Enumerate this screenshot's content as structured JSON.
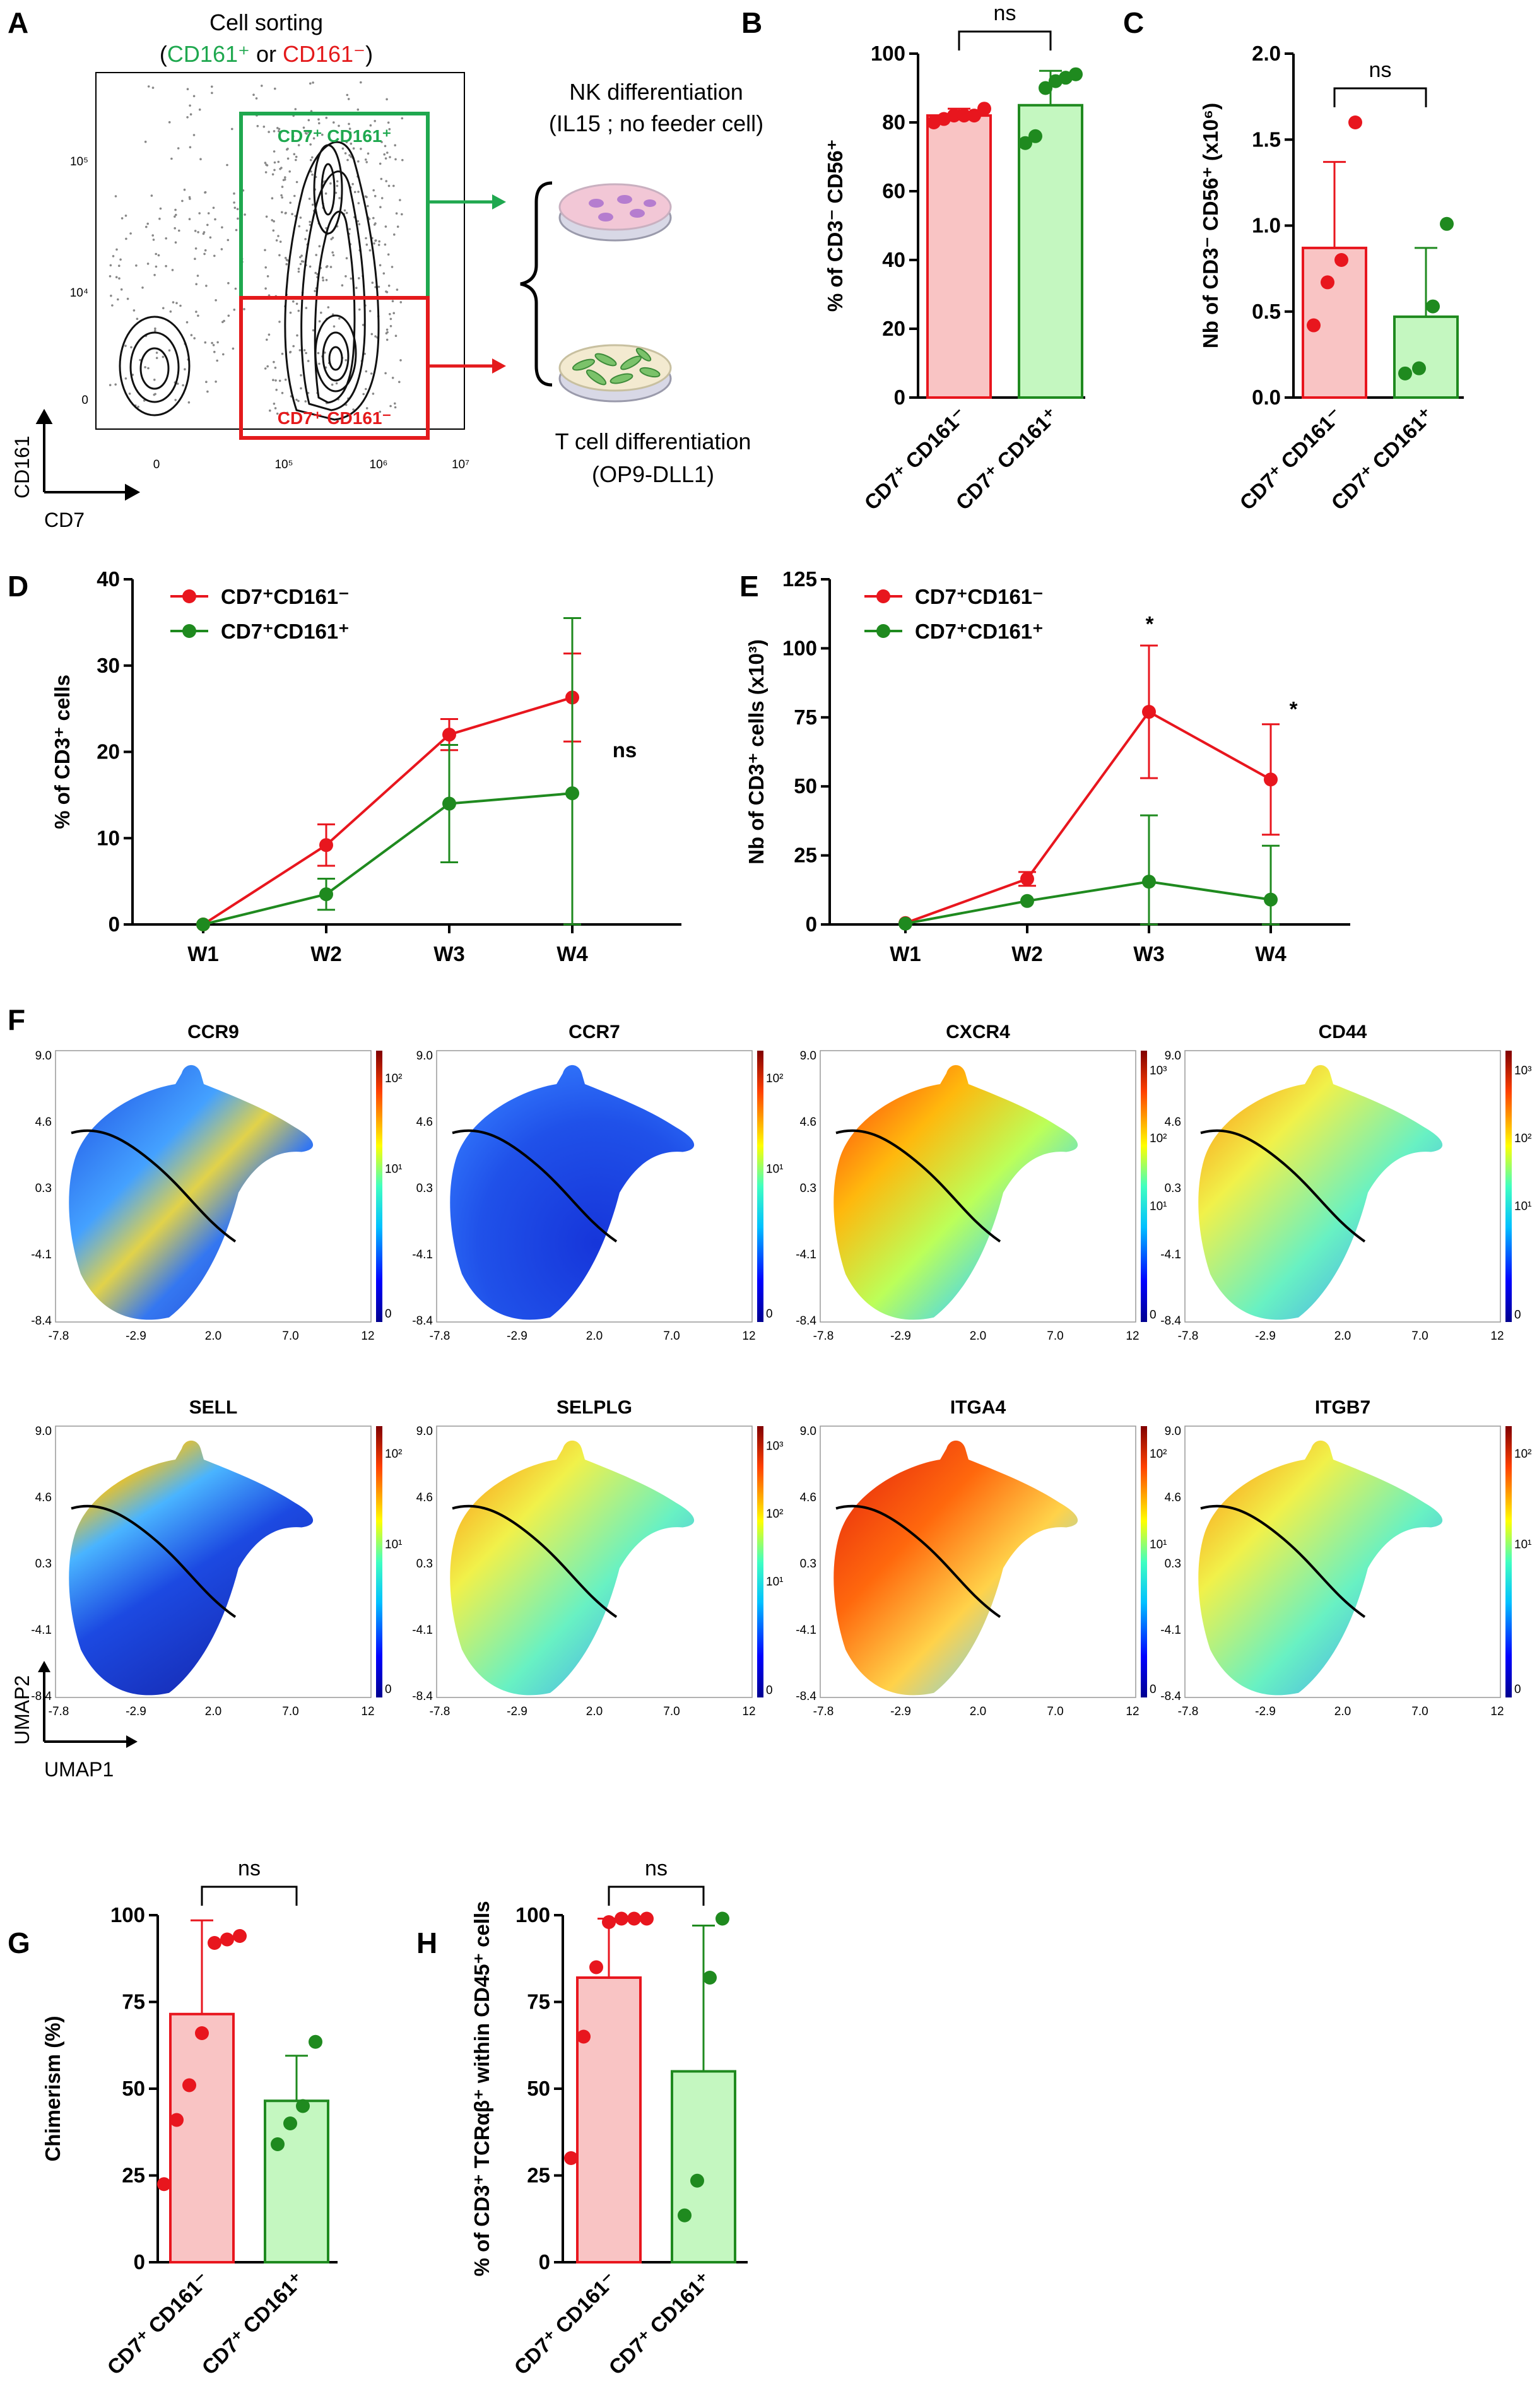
{
  "colors": {
    "red": "#e8161e",
    "green": "#1f8a1f",
    "red_fill": "#f9c4c4",
    "green_fill": "#c4f7c0",
    "gate_green": "#1fa84f",
    "gate_red": "#e41a1c",
    "text_green": "#1fa84f",
    "text_red": "#e41a1c"
  },
  "panel_letters": [
    "A",
    "B",
    "C",
    "D",
    "E",
    "F",
    "G",
    "H"
  ],
  "panel_a": {
    "title": "Cell sorting",
    "subtitle_open": "(",
    "subtitle_green": "CD161⁺",
    "subtitle_or": " or ",
    "subtitle_red": "CD161⁻",
    "subtitle_close": ")",
    "gate_top": "CD7⁺ CD161⁺",
    "gate_bottom": "CD7⁺ CD161⁻",
    "x_axis": "CD7",
    "y_axis": "CD161",
    "x_ticks": [
      "0",
      "10⁵",
      "10⁶",
      "10⁷"
    ],
    "y_ticks": [
      "0",
      "10⁴",
      "10⁵"
    ],
    "nk_line1": "NK differentiation",
    "nk_line2": "(IL15 ; no feeder cell)",
    "t_line1": "T cell differentiation",
    "t_line2": "(OP9-DLL1)"
  },
  "chart_data": [
    {
      "id": "B",
      "type": "bar",
      "categories": [
        "CD7⁺ CD161⁻",
        "CD7⁺ CD161⁺"
      ],
      "values": [
        82,
        85
      ],
      "errors": [
        2,
        10
      ],
      "points": [
        [
          80,
          81,
          82,
          82,
          82,
          84
        ],
        [
          74,
          76,
          90,
          92,
          93,
          94
        ]
      ],
      "ylabel": "% of CD3⁻ CD56⁺",
      "ylim": [
        0,
        100
      ],
      "yticks": [
        "0",
        "20",
        "40",
        "60",
        "80",
        "100"
      ],
      "annotation": "ns"
    },
    {
      "id": "C",
      "type": "bar",
      "categories": [
        "CD7⁺ CD161⁻",
        "CD7⁺ CD161⁺"
      ],
      "values": [
        0.87,
        0.47
      ],
      "errors": [
        0.5,
        0.4
      ],
      "points": [
        [
          0.42,
          0.67,
          0.8,
          1.6
        ],
        [
          0.14,
          0.17,
          0.53,
          1.01
        ]
      ],
      "ylabel": "Nb of CD3⁻ CD56⁺ (x10⁶)",
      "ylim": [
        0,
        2.0
      ],
      "yticks": [
        "0.0",
        "0.5",
        "1.0",
        "1.5",
        "2.0"
      ],
      "annotation": "ns"
    },
    {
      "id": "D",
      "type": "line",
      "x": [
        "W1",
        "W2",
        "W3",
        "W4"
      ],
      "series": [
        {
          "name": "CD7⁺CD161⁻",
          "values": [
            0,
            9.2,
            22,
            26.3
          ],
          "errors": [
            0,
            2.4,
            1.8,
            5.1
          ]
        },
        {
          "name": "CD7⁺CD161⁺",
          "values": [
            0,
            3.5,
            14,
            15.2
          ],
          "errors": [
            0,
            1.8,
            6.8,
            20.3
          ]
        }
      ],
      "ylabel": "% of CD3⁺ cells",
      "ylim": [
        0,
        40
      ],
      "yticks": [
        "0",
        "10",
        "20",
        "30",
        "40"
      ],
      "annotation": "ns"
    },
    {
      "id": "E",
      "type": "line",
      "x": [
        "W1",
        "W2",
        "W3",
        "W4"
      ],
      "series": [
        {
          "name": "CD7⁺CD161⁻",
          "values": [
            0.5,
            16.5,
            77,
            52.5
          ],
          "errors": [
            0,
            2.5,
            24,
            20
          ]
        },
        {
          "name": "CD7⁺CD161⁺",
          "values": [
            0.3,
            8.5,
            15.5,
            9
          ],
          "errors": [
            0,
            0,
            24,
            19.5
          ]
        }
      ],
      "ylabel": "Nb of CD3⁺ cells (x10³)",
      "ylim": [
        0,
        125
      ],
      "yticks": [
        "0",
        "25",
        "50",
        "75",
        "100",
        "125"
      ],
      "annotation": "*"
    },
    {
      "id": "G",
      "type": "bar",
      "categories": [
        "CD7⁺ CD161⁻",
        "CD7⁺ CD161⁺"
      ],
      "values": [
        71.5,
        46.5
      ],
      "errors": [
        27,
        13
      ],
      "points": [
        [
          22.5,
          41,
          51,
          66,
          92,
          93,
          94
        ],
        [
          34,
          40,
          45,
          63.5
        ]
      ],
      "ylabel": "Chimerism (%)",
      "ylim": [
        0,
        100
      ],
      "yticks": [
        "0",
        "25",
        "50",
        "75",
        "100"
      ],
      "annotation": "ns"
    },
    {
      "id": "H",
      "type": "bar",
      "categories": [
        "CD7⁺ CD161⁻",
        "CD7⁺ CD161⁺"
      ],
      "values": [
        82,
        55
      ],
      "errors": [
        17,
        42
      ],
      "points": [
        [
          30,
          65,
          85,
          98,
          99,
          99,
          99
        ],
        [
          13.5,
          23.5,
          82,
          99
        ]
      ],
      "ylabel": "% of CD3⁺ TCRαβ⁺ within CD45⁺ cells",
      "ylim": [
        0,
        100
      ],
      "yticks": [
        "0",
        "25",
        "50",
        "75",
        "100"
      ],
      "annotation": "ns"
    },
    {
      "id": "F",
      "type": "heatmap",
      "markers": [
        "CCR9",
        "CCR7",
        "CXCR4",
        "CD44",
        "SELL",
        "SELPLG",
        "ITGA4",
        "ITGB7"
      ],
      "scales": [
        [
          "10²",
          "10¹",
          "0"
        ],
        [
          "10²",
          "10¹",
          "0"
        ],
        [
          "10³",
          "10²",
          "10¹",
          "0"
        ],
        [
          "10³",
          "10²",
          "10¹",
          "0"
        ],
        [
          "10²",
          "10¹",
          "0"
        ],
        [
          "10³",
          "10²",
          "10¹",
          "0"
        ],
        [
          "10²",
          "10¹",
          "0"
        ],
        [
          "10²",
          "10¹",
          "0"
        ]
      ],
      "xticks": [
        "-7.8",
        "-2.9",
        "2.0",
        "7.0",
        "12"
      ],
      "yticks": [
        "9.0",
        "4.6",
        "0.3",
        "-4.1",
        "-8.4"
      ],
      "xlabel": "UMAP1",
      "ylabel": "UMAP2"
    }
  ]
}
